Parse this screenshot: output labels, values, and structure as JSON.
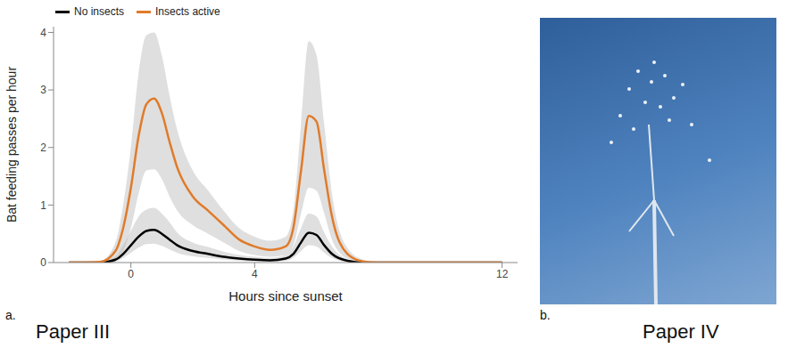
{
  "chart_data": {
    "type": "line",
    "xlabel": "Hours since sunset",
    "ylabel": "Bat feeding passes per hour",
    "x": [
      -2,
      -1.5,
      -1,
      -0.5,
      -0.25,
      0,
      0.25,
      0.5,
      0.75,
      1,
      1.25,
      1.5,
      2,
      2.5,
      3,
      3.5,
      4,
      4.5,
      5,
      5.25,
      5.5,
      5.75,
      6,
      6.25,
      6.5,
      7,
      7.5,
      8,
      9,
      10,
      11,
      12
    ],
    "xlim": [
      -2.5,
      12.5
    ],
    "xticks": [
      0,
      4,
      12
    ],
    "ylim": [
      0,
      4.1
    ],
    "yticks": [
      0,
      1,
      2,
      3,
      4
    ],
    "grid": false,
    "legend": "top left",
    "series": [
      {
        "name": "No insects",
        "color": "#000000",
        "values": [
          0,
          0,
          0,
          0.05,
          0.15,
          0.3,
          0.45,
          0.55,
          0.57,
          0.5,
          0.4,
          0.3,
          0.2,
          0.15,
          0.1,
          0.07,
          0.05,
          0.04,
          0.07,
          0.15,
          0.35,
          0.52,
          0.48,
          0.3,
          0.15,
          0.03,
          0,
          0,
          0,
          0,
          0,
          0
        ],
        "lower": [
          0,
          0,
          0,
          0.02,
          0.08,
          0.17,
          0.26,
          0.32,
          0.33,
          0.29,
          0.23,
          0.17,
          0.11,
          0.08,
          0.05,
          0.03,
          0.02,
          0.02,
          0.03,
          0.08,
          0.2,
          0.3,
          0.28,
          0.17,
          0.08,
          0.01,
          0,
          0,
          0,
          0,
          0,
          0
        ],
        "upper": [
          0,
          0,
          0.01,
          0.1,
          0.3,
          0.55,
          0.8,
          0.92,
          0.95,
          0.85,
          0.7,
          0.52,
          0.35,
          0.27,
          0.19,
          0.13,
          0.1,
          0.08,
          0.13,
          0.28,
          0.6,
          0.85,
          0.8,
          0.52,
          0.28,
          0.06,
          0.01,
          0,
          0,
          0,
          0,
          0
        ]
      },
      {
        "name": "Insects active",
        "color": "#e07b2a",
        "values": [
          0,
          0,
          0.01,
          0.2,
          0.6,
          1.3,
          2.2,
          2.75,
          2.85,
          2.6,
          2.1,
          1.65,
          1.15,
          0.9,
          0.65,
          0.4,
          0.28,
          0.22,
          0.28,
          0.6,
          1.6,
          2.55,
          2.45,
          1.6,
          0.8,
          0.15,
          0.02,
          0,
          0,
          0,
          0,
          0
        ],
        "lower": [
          0,
          0,
          0,
          0.05,
          0.2,
          0.6,
          1.2,
          1.6,
          1.62,
          1.45,
          1.15,
          0.9,
          0.65,
          0.5,
          0.35,
          0.2,
          0.13,
          0.1,
          0.13,
          0.3,
          0.85,
          1.3,
          1.25,
          0.85,
          0.4,
          0.07,
          0.01,
          0,
          0,
          0,
          0,
          0
        ],
        "upper": [
          0,
          0,
          0.02,
          0.35,
          1.0,
          2.0,
          3.3,
          3.95,
          4.0,
          3.6,
          2.9,
          2.3,
          1.6,
          1.25,
          0.9,
          0.6,
          0.45,
          0.38,
          0.45,
          0.9,
          2.4,
          3.85,
          3.6,
          2.4,
          1.2,
          0.25,
          0.05,
          0,
          0,
          0,
          0,
          0
        ]
      }
    ]
  },
  "panel_labels": [
    "a.",
    "b."
  ],
  "texts": [
    "Paper III",
    "Paper IV"
  ]
}
